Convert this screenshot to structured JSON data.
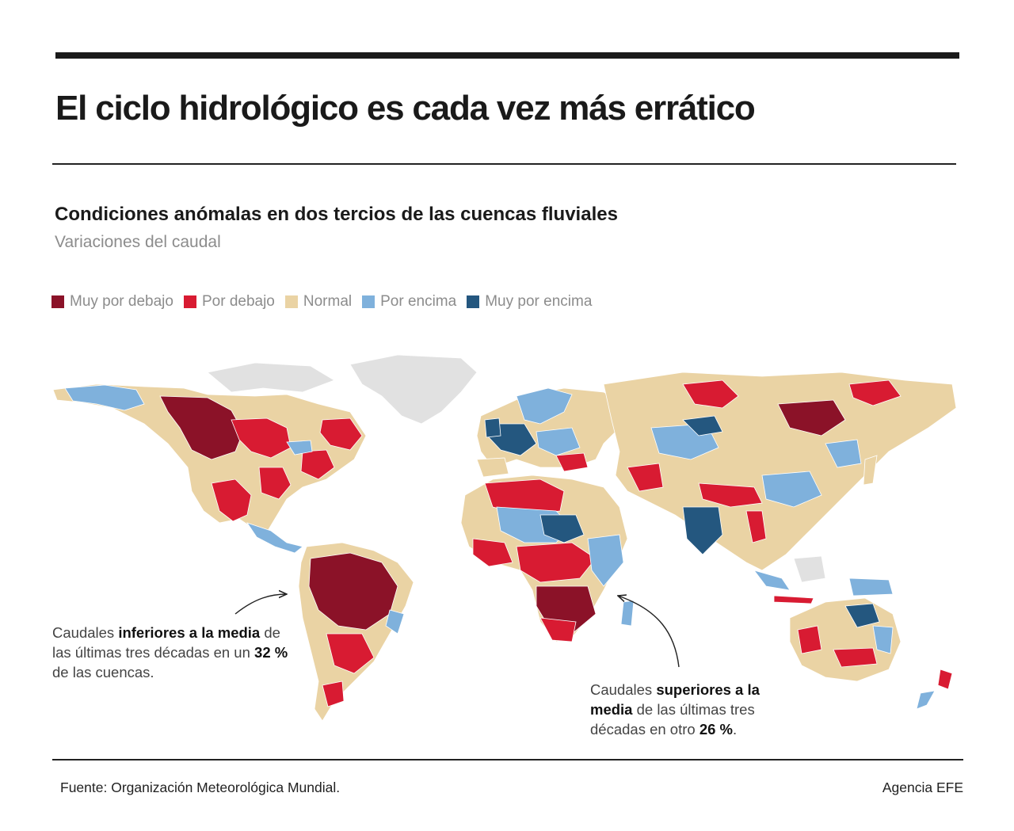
{
  "title": "El ciclo hidrológico es cada vez más errático",
  "subtitle": "Condiciones anómalas en dos tercios de las cuencas fluviales",
  "caption": "Variaciones del caudal",
  "legend": [
    {
      "label": "Muy por debajo",
      "color": "#8b1228"
    },
    {
      "label": "Por debajo",
      "color": "#d81b32"
    },
    {
      "label": "Normal",
      "color": "#ead3a4"
    },
    {
      "label": "Por encima",
      "color": "#7fb1dc"
    },
    {
      "label": "Muy por encima",
      "color": "#24577f"
    }
  ],
  "no_data_color": "#e1e1e1",
  "annotation_left": {
    "pre": "Caudales ",
    "bold1": "inferiores a la media",
    "mid": " de las últimas tres décadas en un ",
    "bold2": "32 %",
    "post": " de las cuencas."
  },
  "annotation_right": {
    "pre": "Caudales ",
    "bold1": "superiores a la media",
    "mid": " de las últimas tres décadas en otro ",
    "bold2": "26 %",
    "post": "."
  },
  "source": "Fuente: Organización Meteorológica Mundial.",
  "credit": "Agencia EFE"
}
